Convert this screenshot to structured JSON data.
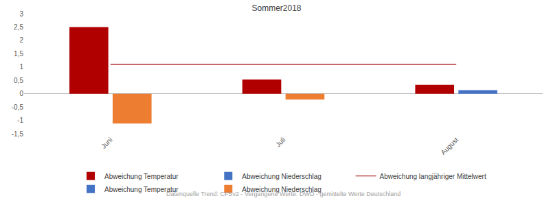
{
  "chart_data": {
    "type": "bar",
    "title": "Sommer2018",
    "categories": [
      "Juni",
      "Juli",
      "August"
    ],
    "series": [
      {
        "name": "Abweichung Temperatur",
        "color": "#B00000",
        "values": [
          2.5,
          0.53,
          0.33
        ]
      },
      {
        "name": "Abweichung Niederschlag",
        "color": "#4472C4",
        "values": [
          null,
          null,
          0.13
        ]
      },
      {
        "name": "Abweichung langjähriger Mittelwert",
        "type": "line",
        "color": "#A00000",
        "values": [
          1.1,
          1.1,
          1.1
        ]
      },
      {
        "name": "Abweichung Temperatur",
        "color": "#4472C4",
        "values": [
          null,
          null,
          null
        ]
      },
      {
        "name": "Abweichung Niederschlag",
        "color": "#ED7D31",
        "values": [
          -1.12,
          -0.22,
          null
        ]
      }
    ],
    "ylim": [
      -1.5,
      3
    ],
    "yticks": [
      {
        "value": -1.5,
        "label": "-1,5"
      },
      -1,
      {
        "value": -0.5,
        "label": "-0,5"
      },
      0,
      {
        "value": 0.5,
        "label": "0,5"
      },
      1,
      {
        "value": 1.5,
        "label": "1,5"
      },
      2,
      {
        "value": 2.5,
        "label": "2,5"
      },
      3
    ],
    "grid": false,
    "legend": "bottom",
    "annotations": [
      "Datenquelle Trend: CFSv2 - Vergangene Werte: DWD - gemittelte Werte Deutschland"
    ]
  }
}
